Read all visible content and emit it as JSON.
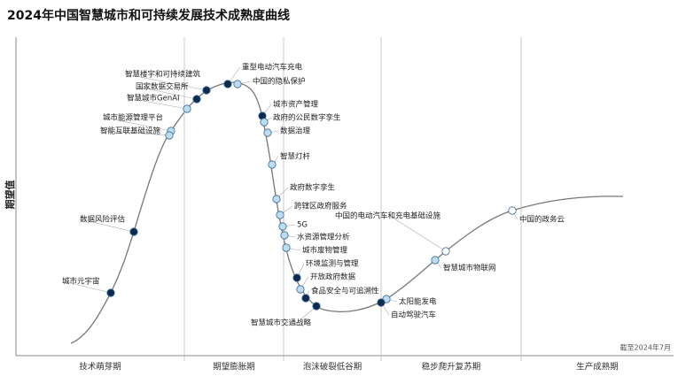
{
  "title": "2024年中国智慧城市和可持续发展技术成熟度曲线",
  "y_axis_label": "期望值",
  "phases": [
    "技术萌芽期",
    "期望膨胀期",
    "泡沫破裂低谷期",
    "稳步爬升复苏期",
    "生产成熟期"
  ],
  "note": "截至2024年7月",
  "nodes": [
    {
      "label": "智慧楼宇和可持续建筑",
      "color": "#0d2a4f"
    },
    {
      "label": "国家数据交易所",
      "color": "#0d2a4f"
    },
    {
      "label": "智慧城市GenAI",
      "color": "#bcdcf0"
    },
    {
      "label": "城市能源管理平台",
      "color": "#bcdcf0"
    },
    {
      "label": "智能互联基础设施",
      "color": "#bcdcf0"
    },
    {
      "label": "数据风险评估",
      "color": "#0d2a4f"
    },
    {
      "label": "城市元宇宙",
      "color": "#0d2a4f"
    },
    {
      "label": "重型电动汽车充电",
      "color": "#0d2a4f"
    },
    {
      "label": "中国的隐私保护",
      "color": "#bcdcf0"
    },
    {
      "label": "城市资产管理",
      "color": "#0d2a4f"
    },
    {
      "label": "政府的公民数字孪生",
      "color": "#bcdcf0"
    },
    {
      "label": "数据治理",
      "color": "#bcdcf0"
    },
    {
      "label": "智慧灯杆",
      "color": "#bcdcf0"
    },
    {
      "label": "政府数字孪生",
      "color": "#bcdcf0"
    },
    {
      "label": "跨辖区政府服务",
      "color": "#bcdcf0"
    },
    {
      "label": "5G",
      "color": "#bcdcf0"
    },
    {
      "label": "水资源管理分析",
      "color": "#bcdcf0"
    },
    {
      "label": "城市废物管理",
      "color": "#bcdcf0"
    },
    {
      "label": "环境监测与管理",
      "color": "#0d2a4f"
    },
    {
      "label": "开放政府数据",
      "color": "#bcdcf0"
    },
    {
      "label": "食品安全与可追溯性",
      "color": "#0d2a4f"
    },
    {
      "label": "智慧城市交通战略",
      "color": "#0d2a4f"
    },
    {
      "label": "太阳能发电",
      "color": "#bcdcf0"
    },
    {
      "label": "自动驾驶汽车",
      "color": "#0d2a4f"
    },
    {
      "label": "智慧城市物联网",
      "color": "#bcdcf0"
    },
    {
      "label": "中国的电动汽车和充电基础设施",
      "color": "#ffffff"
    },
    {
      "label": "中国的政务云",
      "color": "#ffffff"
    }
  ]
}
